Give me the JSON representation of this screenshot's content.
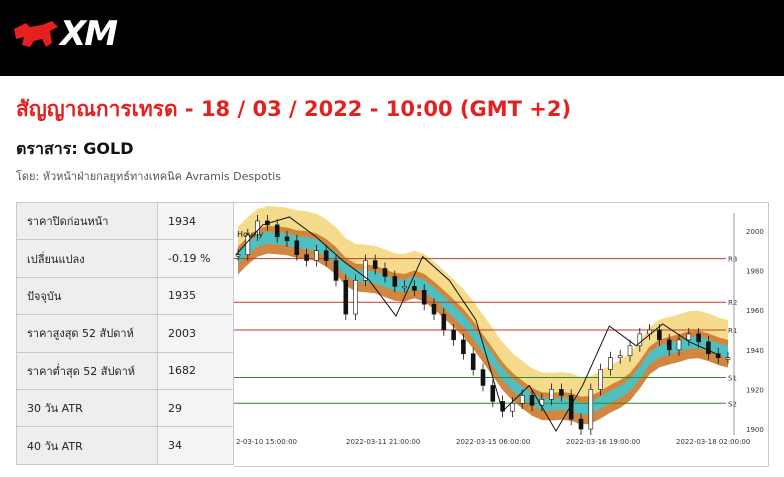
{
  "header": {
    "logo_text": "XM",
    "logo_icon": "xm-bull-logo",
    "brand_color": "#e4211e"
  },
  "signal": {
    "title": "สัญญาณการเทรด - 18 / 03 / 2022 - 10:00 (GMT +2)",
    "instrument": "ตราสาร: GOLD",
    "author": "โดย: หัวหน้าฝ่ายกลยุทธ์ทางเทคนิค Avramis Despotis"
  },
  "stats": [
    {
      "label": "ราคาปิดก่อนหน้า",
      "value": "1934"
    },
    {
      "label": "เปลี่ยนแปลง",
      "value": "-0.19 %"
    },
    {
      "label": "ปัจจุบัน",
      "value": "1935"
    },
    {
      "label": "ราคาสูงสุด 52 สัปดาห์",
      "value": "2003"
    },
    {
      "label": "ราคาต่ำสุด 52 สัปดาห์",
      "value": "1682"
    },
    {
      "label": "30 วัน ATR",
      "value": "29"
    },
    {
      "label": "40 วัน ATR",
      "value": "34"
    }
  ],
  "chart_data": {
    "type": "line",
    "timeframe_label": "Hourly",
    "ylim": [
      1897,
      2009
    ],
    "yticks": [
      1900,
      1920,
      1940,
      1960,
      1980,
      2000
    ],
    "x_tick_labels": [
      "2-03-10 15:00:00",
      "2022-03-11 21:00:00",
      "2022-03-15 06:00:00",
      "2022-03-16 19:00:00",
      "2022-03-18 02:00:00"
    ],
    "levels": [
      {
        "name": "R3",
        "value": 1986,
        "color": "#c0392b"
      },
      {
        "name": "R2",
        "value": 1964,
        "color": "#c0392b"
      },
      {
        "name": "R1",
        "value": 1950,
        "color": "#c0392b"
      },
      {
        "name": "S1",
        "value": 1926,
        "color": "#2e8b2e"
      },
      {
        "name": "S2",
        "value": 1913,
        "color": "#2e8b2e"
      }
    ],
    "series": [
      {
        "values": [
          1988,
          1998,
          2005,
          2003,
          1997,
          1995,
          1988,
          1985,
          1990,
          1985,
          1975,
          1958,
          1975,
          1985,
          1981,
          1977,
          1972,
          1972,
          1970,
          1963,
          1958,
          1950,
          1945,
          1938,
          1930,
          1922,
          1914,
          1909,
          1913,
          1917,
          1912,
          1915,
          1920,
          1917,
          1905,
          1900,
          1920,
          1930,
          1936,
          1937,
          1942,
          1948,
          1950,
          1945,
          1940,
          1945,
          1948,
          1944,
          1938,
          1936,
          1936
        ]
      },
      {
        "values": [
          1988,
          2003,
          2007,
          1997,
          1985,
          1975,
          1957,
          1987,
          1975,
          1955,
          1909,
          1922,
          1899,
          1922,
          1952,
          1942,
          1953,
          1944,
          1938
        ]
      }
    ],
    "band_colors": {
      "outer": "#f5d77f",
      "mid": "#cc7a2e",
      "inner": "#3fc6cf"
    }
  }
}
